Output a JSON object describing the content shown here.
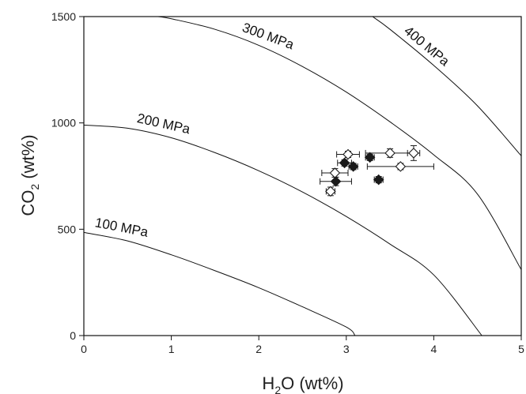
{
  "chart_data": {
    "type": "scatter",
    "title": "",
    "xlabel": {
      "main": "H",
      "sub": "2",
      "rest": "O (wt%)"
    },
    "ylabel": {
      "main": "CO",
      "sub": "2",
      "rest": " (wt%)"
    },
    "xlim": [
      0,
      5
    ],
    "ylim": [
      0,
      1500
    ],
    "x_ticks": [
      0,
      1,
      2,
      3,
      4,
      5
    ],
    "y_ticks": [
      0,
      500,
      1000,
      1500
    ],
    "x_tick_labels": [
      "0",
      "1",
      "2",
      "3",
      "4",
      "5"
    ],
    "y_tick_labels": [
      "0",
      "500",
      "1000",
      "1500"
    ],
    "grid": false,
    "isobars": [
      {
        "label": "100 MPa",
        "points": [
          [
            0,
            485
          ],
          [
            0.5,
            445
          ],
          [
            1,
            380
          ],
          [
            1.5,
            305
          ],
          [
            2,
            225
          ],
          [
            2.5,
            135
          ],
          [
            3,
            40
          ],
          [
            3.1,
            0
          ]
        ]
      },
      {
        "label": "200 MPa",
        "points": [
          [
            0,
            990
          ],
          [
            0.5,
            975
          ],
          [
            1,
            930
          ],
          [
            1.5,
            860
          ],
          [
            2,
            775
          ],
          [
            2.5,
            675
          ],
          [
            3,
            560
          ],
          [
            3.5,
            430
          ],
          [
            4,
            285
          ],
          [
            4.55,
            0
          ]
        ]
      },
      {
        "label": "300 MPa",
        "points": [
          [
            0.85,
            1500
          ],
          [
            1,
            1490
          ],
          [
            1.5,
            1440
          ],
          [
            2,
            1365
          ],
          [
            2.5,
            1265
          ],
          [
            3,
            1145
          ],
          [
            3.5,
            1005
          ],
          [
            4,
            850
          ],
          [
            4.5,
            665
          ],
          [
            5,
            310
          ]
        ]
      },
      {
        "label": "400 MPa",
        "points": [
          [
            3.3,
            1500
          ],
          [
            3.5,
            1440
          ],
          [
            4,
            1270
          ],
          [
            4.5,
            1080
          ],
          [
            5,
            845
          ]
        ]
      }
    ],
    "series": [
      {
        "marker": "filled-diamond",
        "color": "#1a1a1a",
        "points": [
          {
            "x": 2.88,
            "y": 725,
            "xerr": 0.18,
            "yerr": 20
          },
          {
            "x": 2.98,
            "y": 812,
            "xerr": 0.08,
            "yerr": 15
          },
          {
            "x": 3.08,
            "y": 795,
            "xerr": 0.05,
            "yerr": 15
          },
          {
            "x": 3.27,
            "y": 838,
            "xerr": 0.05,
            "yerr": 15
          },
          {
            "x": 3.37,
            "y": 733,
            "xerr": 0.05,
            "yerr": 15
          }
        ]
      },
      {
        "marker": "open-diamond",
        "color": "#1a1a1a",
        "points": [
          {
            "x": 2.82,
            "y": 678,
            "xerr": 0.05,
            "yerr": 20
          },
          {
            "x": 2.87,
            "y": 765,
            "xerr": 0.15,
            "yerr": 20
          },
          {
            "x": 3.02,
            "y": 852,
            "xerr": 0.13,
            "yerr": 15
          },
          {
            "x": 3.5,
            "y": 858,
            "xerr": 0.28,
            "yerr": 20
          },
          {
            "x": 3.62,
            "y": 795,
            "xerr": 0.38,
            "yerr": 15
          },
          {
            "x": 3.77,
            "y": 858,
            "xerr": 0.07,
            "yerr": 35
          }
        ]
      }
    ]
  }
}
